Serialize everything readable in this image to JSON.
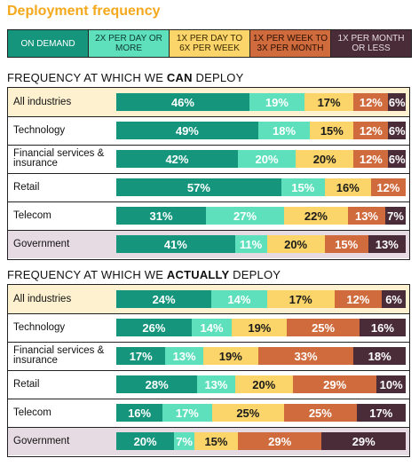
{
  "title": "Deployment frequency",
  "legend": [
    {
      "label": "ON DEMAND",
      "color": "#16957d",
      "text_color": "#ffffff"
    },
    {
      "label": "2X PER DAY OR MORE",
      "color": "#5fe0bc",
      "text_color": "#0b3b32"
    },
    {
      "label": "1X PER DAY TO 6X PER WEEK",
      "color": "#fbd56a",
      "text_color": "#3a2a00"
    },
    {
      "label": "1X PER WEEK TO 3X PER MONTH",
      "color": "#cf6b3d",
      "text_color": "#2a0f00"
    },
    {
      "label": "1X PER MONTH OR LESS",
      "color": "#4a2b38",
      "text_color": "#e6dbe0"
    }
  ],
  "sections": [
    {
      "title_pre": "FREQUENCY AT WHICH WE ",
      "title_bold": "CAN",
      "title_post": " DEPLOY"
    },
    {
      "title_pre": "FREQUENCY AT WHICH WE ",
      "title_bold": "ACTUALLY",
      "title_post": " DEPLOY"
    }
  ],
  "chart_data": [
    {
      "type": "bar",
      "stacked": true,
      "orientation": "horizontal",
      "title": "FREQUENCY AT WHICH WE CAN DEPLOY",
      "categories": [
        "All industries",
        "Technology",
        "Financial services & insurance",
        "Retail",
        "Telecom",
        "Government"
      ],
      "series": [
        {
          "name": "ON DEMAND",
          "values": [
            46,
            49,
            42,
            57,
            31,
            41
          ]
        },
        {
          "name": "2X PER DAY OR MORE",
          "values": [
            19,
            18,
            20,
            15,
            27,
            11
          ]
        },
        {
          "name": "1X PER DAY TO 6X PER WEEK",
          "values": [
            17,
            15,
            20,
            16,
            22,
            20
          ]
        },
        {
          "name": "1X PER WEEK TO 3X PER MONTH",
          "values": [
            12,
            12,
            12,
            12,
            13,
            15
          ]
        },
        {
          "name": "1X PER MONTH OR LESS",
          "values": [
            6,
            6,
            6,
            0,
            7,
            13
          ]
        }
      ],
      "unit": "%",
      "xlim": [
        0,
        100
      ]
    },
    {
      "type": "bar",
      "stacked": true,
      "orientation": "horizontal",
      "title": "FREQUENCY AT WHICH WE ACTUALLY DEPLOY",
      "categories": [
        "All industries",
        "Technology",
        "Financial services & insurance",
        "Retail",
        "Telecom",
        "Government"
      ],
      "series": [
        {
          "name": "ON DEMAND",
          "values": [
            24,
            26,
            17,
            28,
            16,
            20
          ]
        },
        {
          "name": "2X PER DAY OR MORE",
          "values": [
            14,
            14,
            13,
            13,
            17,
            7
          ]
        },
        {
          "name": "1X PER DAY TO 6X PER WEEK",
          "values": [
            17,
            19,
            19,
            20,
            25,
            15
          ]
        },
        {
          "name": "1X PER WEEK TO 3X PER MONTH",
          "values": [
            12,
            25,
            33,
            29,
            25,
            29
          ]
        },
        {
          "name": "1X PER MONTH OR LESS",
          "values": [
            6,
            16,
            18,
            10,
            17,
            29
          ]
        }
      ],
      "unit": "%",
      "xlim": [
        0,
        100
      ]
    }
  ],
  "row_highlights": {
    "All industries": "#fdf1d0",
    "Government": "#e6dbe2"
  }
}
